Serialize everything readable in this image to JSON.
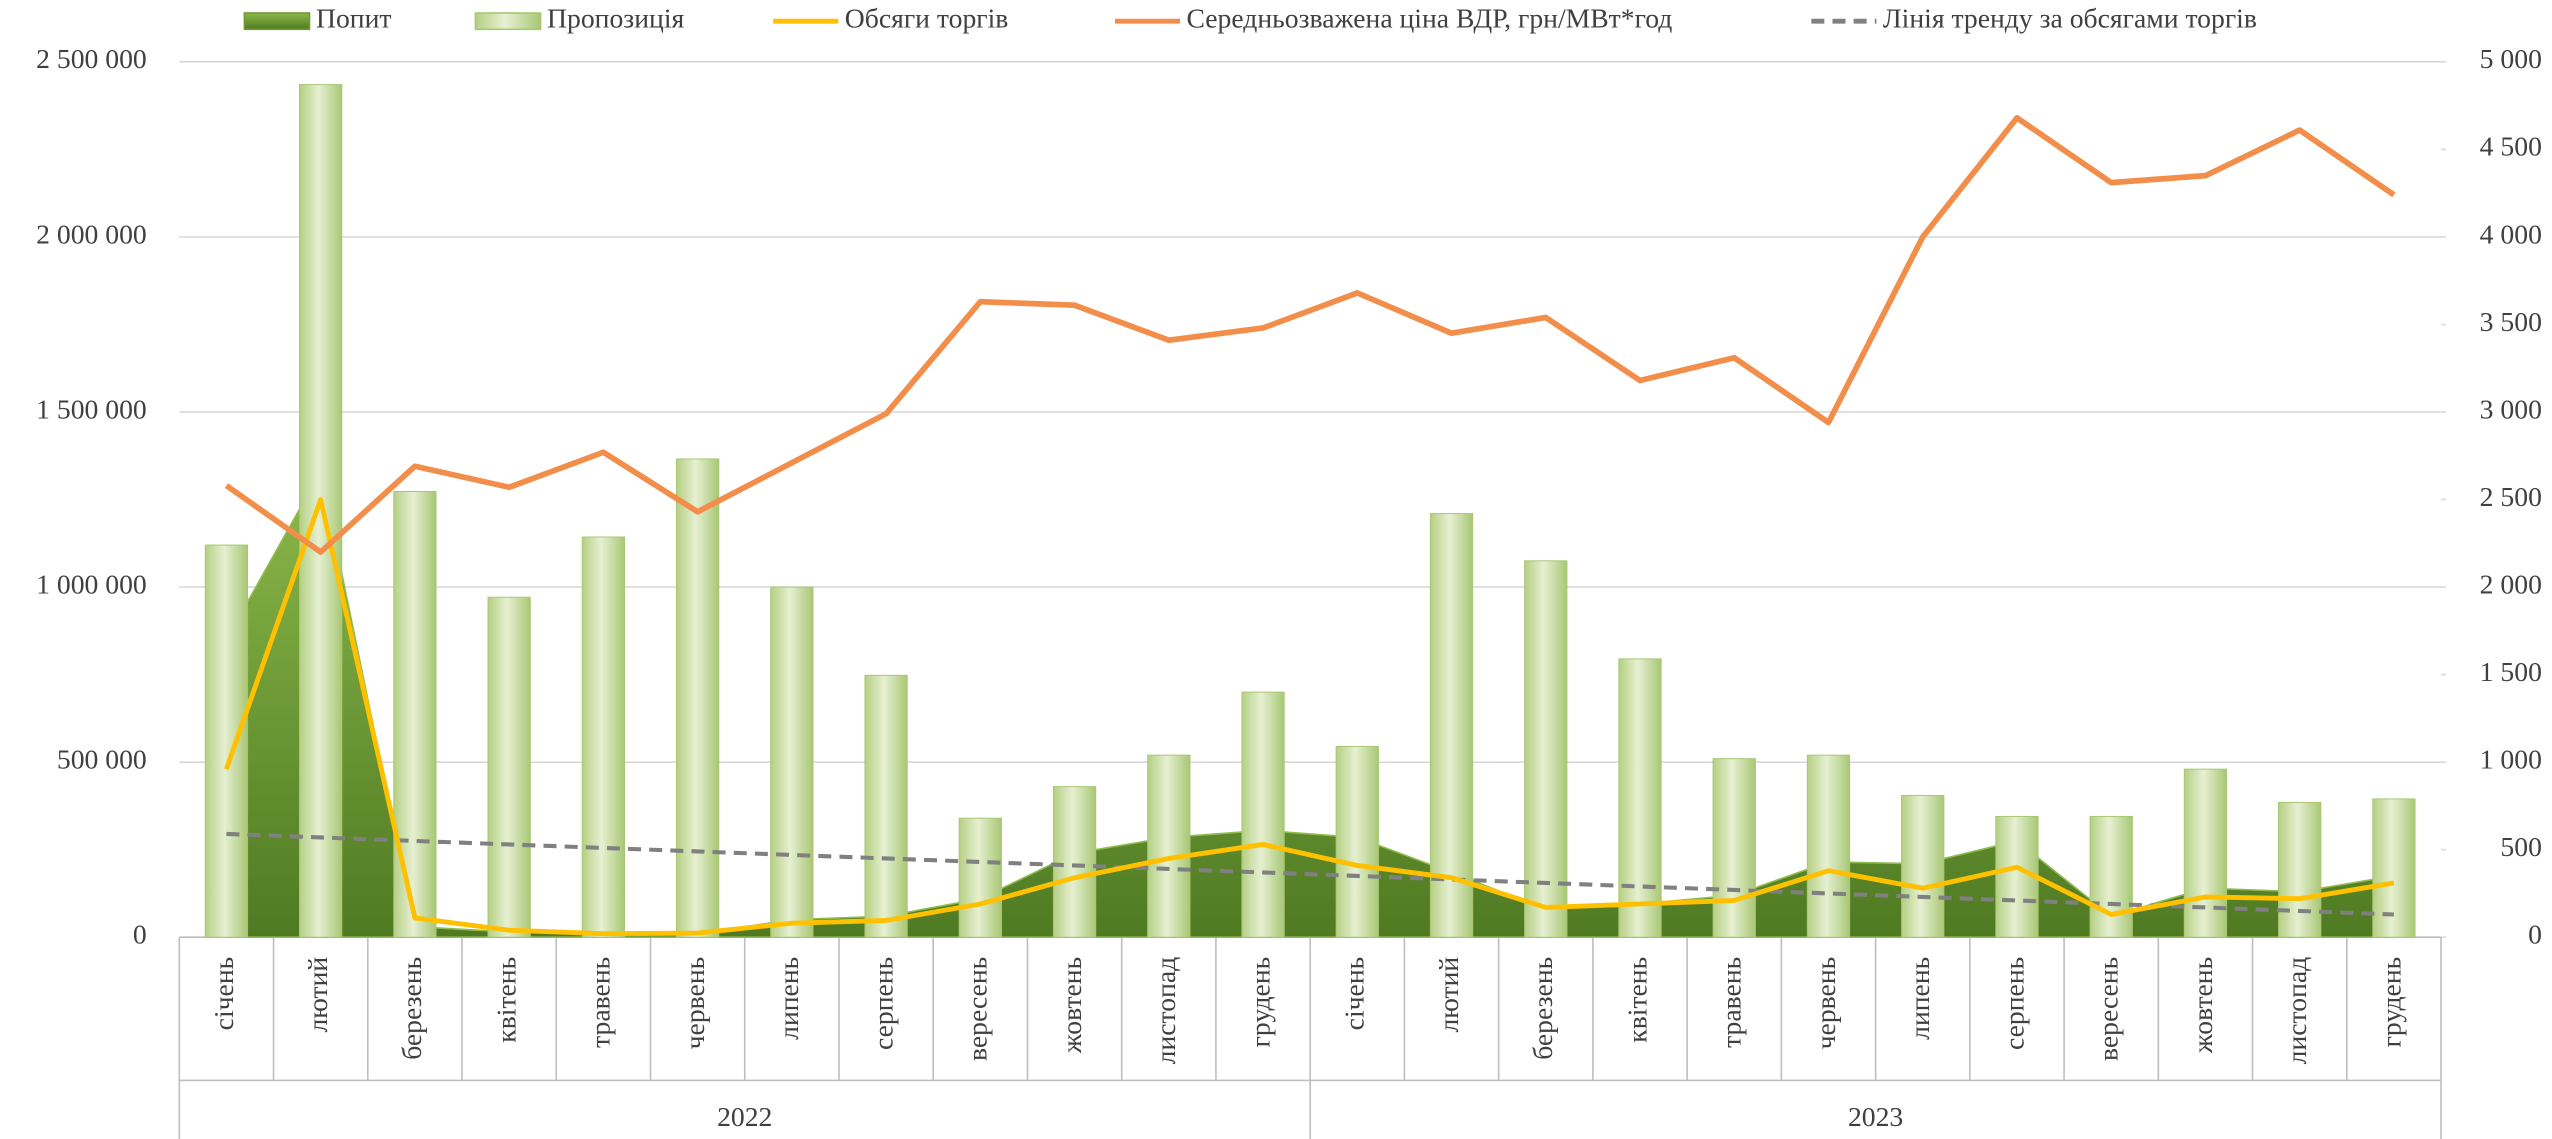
{
  "chart_data": {
    "type": "combo",
    "categories": [
      "січень",
      "лютий",
      "березень",
      "квітень",
      "травень",
      "червень",
      "липень",
      "серпень",
      "вересень",
      "жовтень",
      "листопад",
      "грудень",
      "січень",
      "лютий",
      "березень",
      "квітень",
      "травень",
      "червень",
      "липень",
      "серпень",
      "вересень",
      "жовтень",
      "листопад",
      "грудень"
    ],
    "years": [
      "2022",
      "2023"
    ],
    "series": [
      {
        "name": "Попит",
        "type": "area",
        "color": "#6f9a33",
        "values": [
          850000,
          1330000,
          30000,
          15000,
          10000,
          10000,
          50000,
          60000,
          110000,
          240000,
          285000,
          305000,
          285000,
          185000,
          80000,
          95000,
          120000,
          215000,
          210000,
          275000,
          60000,
          140000,
          130000,
          175000
        ]
      },
      {
        "name": "Пропозиція",
        "type": "bar",
        "color": "#c9dea0",
        "values": [
          1120000,
          2435000,
          1273000,
          971000,
          1143000,
          1366000,
          1000000,
          748000,
          340000,
          430000,
          520000,
          700000,
          545000,
          1210000,
          1075000,
          795000,
          510000,
          520000,
          405000,
          345000,
          345000,
          480000,
          385000,
          395000
        ]
      },
      {
        "name": "Обсяги торгів",
        "type": "line",
        "color": "#ffc000",
        "values": [
          480000,
          1250000,
          55000,
          20000,
          10000,
          12000,
          40000,
          48000,
          95000,
          170000,
          225000,
          265000,
          205000,
          170000,
          85000,
          95000,
          105000,
          190000,
          140000,
          200000,
          65000,
          115000,
          110000,
          155000
        ]
      },
      {
        "name": "Середньозважена ціна ВДР, грн/МВт*год",
        "type": "line",
        "axis": "y2",
        "color": "#f28e4a",
        "values": [
          2580,
          2200,
          2690,
          2570,
          2770,
          2430,
          2710,
          2990,
          3630,
          3610,
          3410,
          3480,
          3680,
          3450,
          3540,
          3180,
          3310,
          2940,
          4000,
          4680,
          4310,
          4350,
          4610,
          4240
        ]
      },
      {
        "name": "Лінія тренду за обсягами торгів",
        "type": "trend",
        "color": "#808080",
        "values": [
          295000,
          285000,
          275000,
          265000,
          255000,
          245000,
          235000,
          225000,
          215000,
          205000,
          195000,
          185000,
          175000,
          165000,
          155000,
          145000,
          135000,
          125000,
          115000,
          105000,
          95000,
          85000,
          75000,
          65000
        ]
      }
    ],
    "ylim": [
      0,
      2500000
    ],
    "yticks": [
      0,
      {
        "value": 500000,
        "label": "500 000"
      },
      {
        "value": 1000000,
        "label": "1 000 000"
      },
      {
        "value": 1500000,
        "label": "1 500 000"
      },
      {
        "value": 2000000,
        "label": "2 000 000"
      },
      {
        "value": 2500000,
        "label": "2 500 000"
      }
    ],
    "y2lim": [
      0,
      5000
    ],
    "y2ticks": [
      0,
      500,
      {
        "value": 1000,
        "label": "1 000"
      },
      {
        "value": 1500,
        "label": "1 500"
      },
      {
        "value": 2000,
        "label": "2 000"
      },
      {
        "value": 2500,
        "label": "2 500"
      },
      {
        "value": 3000,
        "label": "3 000"
      },
      {
        "value": 3500,
        "label": "3 500"
      },
      {
        "value": 4000,
        "label": "4 000"
      },
      {
        "value": 4500,
        "label": "4 500"
      },
      {
        "value": 5000,
        "label": "5 000"
      }
    ],
    "grid": true,
    "legend": "top"
  }
}
